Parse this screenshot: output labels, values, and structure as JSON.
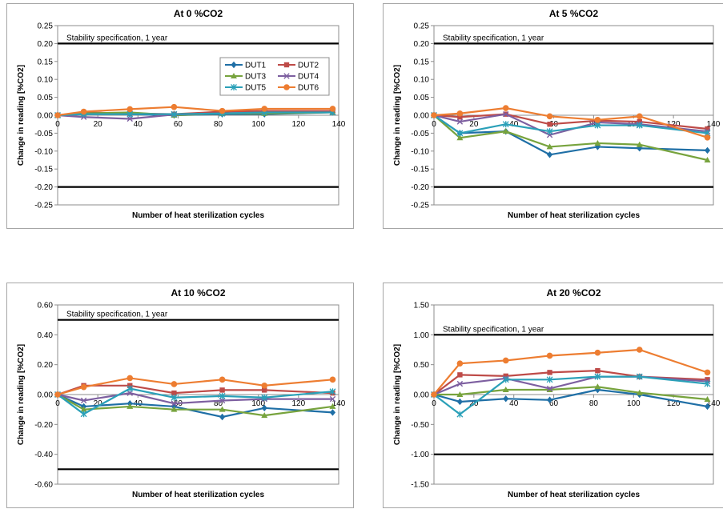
{
  "chart_data": [
    {
      "type": "line",
      "title": "At 0 %CO2",
      "xlabel": "Number of heat sterilization cycles",
      "ylabel": "Change in reading [%CO2]",
      "xlim": [
        0,
        140
      ],
      "ylim": [
        -0.25,
        0.25
      ],
      "xticks": [
        "0",
        "20",
        "40",
        "60",
        "80",
        "100",
        "120",
        "140"
      ],
      "yticks": [
        "0.25",
        "0.20",
        "0.15",
        "0.10",
        "0.05",
        "0.00",
        "-0.05",
        "-0.10",
        "-0.15",
        "-0.20",
        "-0.25"
      ],
      "spec_lines": [
        0.2,
        -0.2
      ],
      "spec_label": "Stability specification, 1 year",
      "legend": true,
      "x": [
        0,
        13,
        36,
        58,
        82,
        103,
        137
      ],
      "series": [
        {
          "name": "DUT1",
          "values": [
            0.0,
            0.005,
            0.003,
            0.0,
            0.003,
            0.003,
            0.008
          ]
        },
        {
          "name": "DUT2",
          "values": [
            0.0,
            0.008,
            0.005,
            0.003,
            0.01,
            0.012,
            0.012
          ]
        },
        {
          "name": "DUT3",
          "values": [
            0.0,
            0.005,
            0.008,
            0.0,
            0.005,
            0.005,
            0.008
          ]
        },
        {
          "name": "DUT4",
          "values": [
            0.0,
            -0.005,
            -0.01,
            0.002,
            0.005,
            0.008,
            0.008
          ]
        },
        {
          "name": "DUT5",
          "values": [
            0.0,
            0.003,
            0.003,
            0.003,
            0.005,
            0.008,
            0.008
          ]
        },
        {
          "name": "DUT6",
          "values": [
            0.0,
            0.01,
            0.017,
            0.023,
            0.012,
            0.018,
            0.018
          ]
        }
      ]
    },
    {
      "type": "line",
      "title": "At 5 %CO2",
      "xlabel": "Number of heat sterilization cycles",
      "ylabel": "Change in reading [%CO2]",
      "xlim": [
        0,
        140
      ],
      "ylim": [
        -0.25,
        0.25
      ],
      "xticks": [
        "0",
        "20",
        "40",
        "60",
        "80",
        "100",
        "120",
        "140"
      ],
      "yticks": [
        "0.25",
        "0.20",
        "0.15",
        "0.10",
        "0.05",
        "0.00",
        "-0.05",
        "-0.10",
        "-0.15",
        "-0.20",
        "-0.25"
      ],
      "spec_lines": [
        0.2,
        -0.2
      ],
      "spec_label": "Stability specification, 1 year",
      "legend": false,
      "x": [
        0,
        13,
        36,
        58,
        82,
        103,
        137
      ],
      "series": [
        {
          "name": "DUT1",
          "values": [
            0.0,
            -0.05,
            -0.045,
            -0.11,
            -0.088,
            -0.092,
            -0.098
          ]
        },
        {
          "name": "DUT2",
          "values": [
            0.0,
            -0.005,
            0.003,
            -0.025,
            -0.015,
            -0.018,
            -0.038
          ]
        },
        {
          "name": "DUT3",
          "values": [
            0.0,
            -0.063,
            -0.045,
            -0.088,
            -0.078,
            -0.082,
            -0.125
          ]
        },
        {
          "name": "DUT4",
          "values": [
            0.0,
            -0.018,
            0.003,
            -0.055,
            -0.02,
            -0.025,
            -0.045
          ]
        },
        {
          "name": "DUT5",
          "values": [
            0.0,
            -0.05,
            -0.025,
            -0.045,
            -0.028,
            -0.028,
            -0.05
          ]
        },
        {
          "name": "DUT6",
          "values": [
            0.0,
            0.005,
            0.02,
            -0.003,
            -0.013,
            -0.003,
            -0.062
          ]
        }
      ]
    },
    {
      "type": "line",
      "title": "At 10 %CO2",
      "xlabel": "Number of heat sterilization cycles",
      "ylabel": "Change in reading [%CO2]",
      "xlim": [
        0,
        140
      ],
      "ylim": [
        -0.6,
        0.6
      ],
      "xticks": [
        "0",
        "20",
        "40",
        "60",
        "80",
        "100",
        "120",
        "140"
      ],
      "yticks": [
        "0.60",
        "0.40",
        "0.20",
        "0.00",
        "-0.20",
        "-0.40",
        "-0.60"
      ],
      "spec_lines": [
        0.5,
        -0.5
      ],
      "spec_label": "Stability specification, 1 year",
      "legend": false,
      "x": [
        0,
        13,
        36,
        58,
        82,
        103,
        137
      ],
      "series": [
        {
          "name": "DUT1",
          "values": [
            0.0,
            -0.08,
            -0.06,
            -0.08,
            -0.15,
            -0.09,
            -0.12
          ]
        },
        {
          "name": "DUT2",
          "values": [
            0.0,
            0.06,
            0.06,
            0.01,
            0.03,
            0.03,
            0.01
          ]
        },
        {
          "name": "DUT3",
          "values": [
            0.0,
            -0.1,
            -0.08,
            -0.1,
            -0.1,
            -0.14,
            -0.08
          ]
        },
        {
          "name": "DUT4",
          "values": [
            0.0,
            -0.04,
            0.01,
            -0.06,
            -0.04,
            -0.03,
            -0.03
          ]
        },
        {
          "name": "DUT5",
          "values": [
            0.0,
            -0.13,
            0.04,
            -0.02,
            -0.01,
            -0.02,
            0.02
          ]
        },
        {
          "name": "DUT6",
          "values": [
            0.0,
            0.05,
            0.11,
            0.07,
            0.1,
            0.06,
            0.1
          ]
        }
      ]
    },
    {
      "type": "line",
      "title": "At 20 %CO2",
      "xlabel": "Number of heat sterilization cycles",
      "ylabel": "Change in reading [%CO2]",
      "xlim": [
        0,
        140
      ],
      "ylim": [
        -1.5,
        1.5
      ],
      "xticks": [
        "0",
        "20",
        "40",
        "60",
        "80",
        "100",
        "120",
        "140"
      ],
      "yticks": [
        "1.50",
        "1.00",
        "0.50",
        "0.00",
        "-0.50",
        "-1.00",
        "-1.50"
      ],
      "spec_lines": [
        1.0,
        -1.0
      ],
      "spec_label": "Stability specification, 1 year",
      "legend": false,
      "x": [
        0,
        13,
        36,
        58,
        82,
        103,
        137
      ],
      "series": [
        {
          "name": "DUT1",
          "values": [
            0.0,
            -0.12,
            -0.07,
            -0.09,
            0.08,
            0.0,
            -0.2
          ]
        },
        {
          "name": "DUT2",
          "values": [
            0.0,
            0.33,
            0.31,
            0.37,
            0.4,
            0.3,
            0.25
          ]
        },
        {
          "name": "DUT3",
          "values": [
            0.0,
            0.0,
            0.08,
            0.08,
            0.13,
            0.03,
            -0.08
          ]
        },
        {
          "name": "DUT4",
          "values": [
            0.0,
            0.18,
            0.27,
            0.1,
            0.3,
            0.3,
            0.22
          ]
        },
        {
          "name": "DUT5",
          "values": [
            0.0,
            -0.33,
            0.25,
            0.25,
            0.3,
            0.3,
            0.18
          ]
        },
        {
          "name": "DUT6",
          "values": [
            0.0,
            0.52,
            0.57,
            0.65,
            0.7,
            0.75,
            0.37
          ]
        }
      ]
    }
  ],
  "series_style": [
    {
      "name": "DUT1",
      "color": "#1f6fa6",
      "marker": "diamond"
    },
    {
      "name": "DUT2",
      "color": "#be4b48",
      "marker": "square"
    },
    {
      "name": "DUT3",
      "color": "#77a33d",
      "marker": "triangle"
    },
    {
      "name": "DUT4",
      "color": "#7d5fa0",
      "marker": "x"
    },
    {
      "name": "DUT5",
      "color": "#2aa0b8",
      "marker": "star"
    },
    {
      "name": "DUT6",
      "color": "#ed7d31",
      "marker": "circle"
    }
  ]
}
